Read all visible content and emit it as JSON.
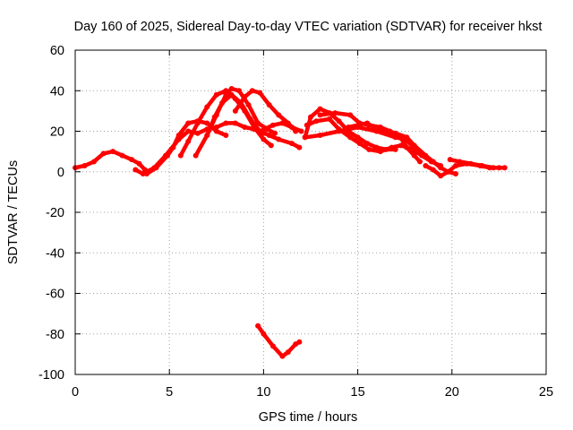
{
  "chart_data": {
    "type": "scatter",
    "title": "Day 160 of 2025, Sidereal Day-to-day VTEC variation (SDTVAR) for receiver hkst",
    "xlabel": "GPS time / hours",
    "ylabel": "SDTVAR / TECUs",
    "xlim": [
      0,
      25
    ],
    "ylim": [
      -100,
      60
    ],
    "xticks": [
      0,
      5,
      10,
      15,
      20,
      25
    ],
    "yticks": [
      -100,
      -80,
      -60,
      -40,
      -20,
      0,
      20,
      40,
      60
    ],
    "grid": true,
    "colors": {
      "series": "#ff0000",
      "grid": "#a0a0a0",
      "axis": "#000000"
    },
    "series": [
      {
        "name": "trace-1",
        "points": [
          [
            0,
            2
          ],
          [
            0.5,
            3
          ],
          [
            1,
            5
          ],
          [
            1.5,
            9
          ],
          [
            2,
            10
          ],
          [
            2.5,
            8
          ],
          [
            3,
            6
          ],
          [
            3.4,
            4
          ],
          [
            3.7,
            1
          ]
        ]
      },
      {
        "name": "trace-2",
        "points": [
          [
            3.2,
            1
          ],
          [
            3.6,
            -1
          ],
          [
            4.2,
            2
          ],
          [
            4.8,
            8
          ],
          [
            5.5,
            16
          ],
          [
            6,
            20
          ],
          [
            6.5,
            19
          ],
          [
            7,
            21
          ],
          [
            7.5,
            22
          ],
          [
            8,
            24
          ],
          [
            8.5,
            24
          ],
          [
            9,
            22
          ],
          [
            9.5,
            21
          ],
          [
            10,
            19
          ]
        ]
      },
      {
        "name": "trace-3",
        "points": [
          [
            3.8,
            -1
          ],
          [
            4.3,
            2
          ],
          [
            4.9,
            8
          ],
          [
            5.2,
            12
          ],
          [
            5.5,
            18
          ],
          [
            6,
            24
          ],
          [
            6.5,
            25
          ],
          [
            7,
            24
          ],
          [
            7.5,
            20
          ],
          [
            8,
            18
          ]
        ]
      },
      {
        "name": "trace-4",
        "points": [
          [
            5.6,
            8
          ],
          [
            6,
            15
          ],
          [
            6.5,
            24
          ],
          [
            7,
            32
          ],
          [
            7.5,
            38
          ],
          [
            8,
            40
          ],
          [
            8.5,
            36
          ],
          [
            9,
            30
          ],
          [
            9.5,
            22
          ],
          [
            10,
            16
          ],
          [
            10.4,
            13
          ]
        ]
      },
      {
        "name": "trace-5",
        "points": [
          [
            6.4,
            8
          ],
          [
            7,
            18
          ],
          [
            7.5,
            28
          ],
          [
            8,
            38
          ],
          [
            8.3,
            41
          ],
          [
            8.7,
            40
          ],
          [
            9.2,
            33
          ],
          [
            9.7,
            24
          ],
          [
            10.2,
            21
          ],
          [
            10.6,
            19
          ]
        ]
      },
      {
        "name": "trace-6",
        "points": [
          [
            7,
            18
          ],
          [
            7.4,
            27
          ],
          [
            7.8,
            34
          ],
          [
            8.3,
            38
          ],
          [
            8.8,
            34
          ],
          [
            9.3,
            26
          ],
          [
            9.8,
            20
          ],
          [
            10.3,
            18
          ],
          [
            10.8,
            16
          ],
          [
            11.5,
            14
          ],
          [
            11.9,
            12
          ]
        ]
      },
      {
        "name": "trace-7",
        "points": [
          [
            8.5,
            30
          ],
          [
            9,
            37
          ],
          [
            9.4,
            40
          ],
          [
            9.8,
            39
          ],
          [
            10.3,
            33
          ],
          [
            10.8,
            28
          ],
          [
            11.3,
            24
          ],
          [
            11.7,
            20
          ]
        ]
      },
      {
        "name": "trace-8",
        "points": [
          [
            9.8,
            20
          ],
          [
            10.5,
            23
          ],
          [
            11,
            24
          ],
          [
            11.5,
            22
          ],
          [
            12,
            20
          ]
        ]
      },
      {
        "name": "trace-9",
        "points": [
          [
            12.2,
            17
          ],
          [
            12.5,
            27
          ],
          [
            13,
            31
          ],
          [
            13.5,
            29
          ],
          [
            14,
            25
          ],
          [
            14.5,
            20
          ],
          [
            15,
            17
          ],
          [
            15.5,
            14
          ],
          [
            16,
            12
          ],
          [
            16.5,
            11
          ],
          [
            17,
            11
          ]
        ]
      },
      {
        "name": "trace-10",
        "points": [
          [
            12.3,
            23
          ],
          [
            12.8,
            25
          ],
          [
            13.5,
            26
          ],
          [
            14,
            21
          ],
          [
            14.6,
            17
          ],
          [
            15.1,
            14
          ],
          [
            15.6,
            11
          ],
          [
            16.2,
            10
          ],
          [
            16.8,
            12
          ],
          [
            17.3,
            13
          ],
          [
            17.9,
            11
          ],
          [
            18.4,
            8
          ],
          [
            18.9,
            5
          ],
          [
            19.4,
            3
          ]
        ]
      },
      {
        "name": "trace-11",
        "points": [
          [
            12.2,
            17
          ],
          [
            13,
            18
          ],
          [
            14,
            20
          ],
          [
            15,
            22
          ],
          [
            16,
            20
          ],
          [
            17,
            17
          ],
          [
            17.5,
            16
          ],
          [
            18,
            12
          ],
          [
            18.5,
            8
          ],
          [
            19,
            5
          ]
        ]
      },
      {
        "name": "trace-12",
        "points": [
          [
            13,
            28
          ],
          [
            13.8,
            29
          ],
          [
            14.6,
            28
          ],
          [
            15.1,
            24
          ],
          [
            15.6,
            23
          ],
          [
            16.2,
            22
          ],
          [
            16.7,
            20
          ],
          [
            17.2,
            18
          ],
          [
            17.6,
            12
          ],
          [
            18,
            8
          ],
          [
            18.3,
            5
          ]
        ]
      },
      {
        "name": "trace-13",
        "points": [
          [
            14.5,
            22
          ],
          [
            15.5,
            24
          ],
          [
            16,
            21
          ],
          [
            17,
            19
          ],
          [
            17.6,
            17
          ],
          [
            18,
            13
          ],
          [
            18.6,
            8
          ],
          [
            19,
            5
          ],
          [
            19.4,
            2
          ],
          [
            19.8,
            0
          ],
          [
            20.2,
            -1
          ]
        ]
      },
      {
        "name": "trace-14",
        "points": [
          [
            18.6,
            3
          ],
          [
            19,
            1
          ],
          [
            19.4,
            -2
          ],
          [
            19.8,
            0
          ],
          [
            20.2,
            3
          ],
          [
            20.8,
            4
          ],
          [
            21.5,
            3
          ],
          [
            22,
            2
          ],
          [
            22.5,
            2
          ],
          [
            22.8,
            2
          ]
        ]
      },
      {
        "name": "trace-15",
        "points": [
          [
            19.9,
            6
          ],
          [
            20.4,
            5
          ],
          [
            21,
            4
          ],
          [
            21.6,
            3
          ],
          [
            22.2,
            2
          ]
        ]
      },
      {
        "name": "trace-16",
        "points": [
          [
            9.7,
            -76
          ],
          [
            10,
            -80
          ],
          [
            10.5,
            -86
          ],
          [
            11,
            -91
          ],
          [
            11.3,
            -89
          ],
          [
            11.7,
            -85
          ],
          [
            11.9,
            -84
          ]
        ]
      }
    ]
  }
}
